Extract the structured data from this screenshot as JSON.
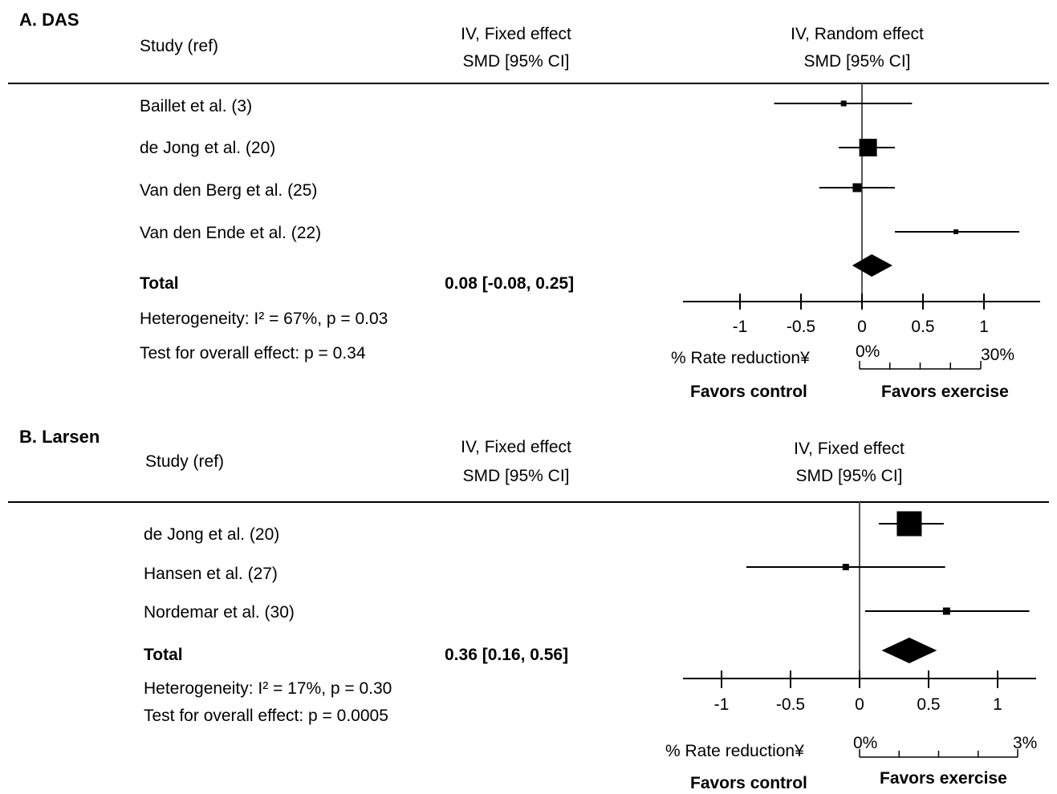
{
  "chart_data": [
    {
      "type": "forest",
      "panel_label": "A. DAS",
      "header": {
        "study_col": "Study (ref)",
        "mid_col_1": "IV, Fixed effect",
        "mid_col_2": "SMD [95% CI]",
        "right_col_1": "IV, Random effect",
        "right_col_2": "SMD [95% CI]"
      },
      "studies": [
        {
          "name": "Baillet et al. (3)",
          "smd": -0.15,
          "ci": [
            -0.72,
            0.41
          ]
        },
        {
          "name": "de Jong et al. (20)",
          "smd": 0.05,
          "ci": [
            -0.19,
            0.27
          ]
        },
        {
          "name": "Van den Berg et al. (25)",
          "smd": -0.04,
          "ci": [
            -0.35,
            0.27
          ]
        },
        {
          "name": "Van den Ende et al. (22)",
          "smd": 0.77,
          "ci": [
            0.27,
            1.29
          ]
        }
      ],
      "total": {
        "label": "Total",
        "text": "0.08 [-0.08, 0.25]",
        "smd": 0.08,
        "ci": [
          -0.08,
          0.25
        ]
      },
      "heterogeneity": "Heterogeneity: I² = 67%, p = 0.03",
      "overall_effect": "Test for overall effect: p = 0.34",
      "xaxis": {
        "ticks": [
          -1,
          -0.5,
          0,
          0.5,
          1
        ],
        "tick_labels": [
          "-1",
          "-0.5",
          "0",
          "0.5",
          "1"
        ],
        "xlim": [
          -1.45,
          1.45
        ]
      },
      "rate_reduction": {
        "label": "% Rate reduction¥",
        "start": "0%",
        "end": "30%"
      },
      "favors_left": "Favors control",
      "favors_right": "Favors exercise"
    },
    {
      "type": "forest",
      "panel_label": "B. Larsen",
      "header": {
        "study_col": "Study (ref)",
        "mid_col_1": "IV, Fixed effect",
        "mid_col_2": "SMD [95% CI]",
        "right_col_1": "IV, Fixed effect",
        "right_col_2": "SMD [95% CI]"
      },
      "studies": [
        {
          "name": "de Jong et al. (20)",
          "smd": 0.36,
          "ci": [
            0.14,
            0.61
          ]
        },
        {
          "name": "Hansen et al. (27)",
          "smd": -0.1,
          "ci": [
            -0.82,
            0.62
          ]
        },
        {
          "name": "Nordemar et al. (30)",
          "smd": 0.63,
          "ci": [
            0.04,
            1.23
          ]
        }
      ],
      "total": {
        "label": "Total",
        "text": "0.36 [0.16, 0.56]",
        "smd": 0.36,
        "ci": [
          0.16,
          0.56
        ]
      },
      "heterogeneity": "Heterogeneity: I² = 17%, p = 0.30",
      "overall_effect": "Test for overall effect: p = 0.0005",
      "xaxis": {
        "ticks": [
          -1,
          -0.5,
          0,
          0.5,
          1
        ],
        "tick_labels": [
          "-1",
          "-0.5",
          "0",
          "0.5",
          "1"
        ],
        "xlim": [
          -1.25,
          1.28
        ]
      },
      "rate_reduction": {
        "label": "% Rate reduction¥",
        "start": "0%",
        "end": "3%"
      },
      "favors_left": "Favors control",
      "favors_right": "Favors exercise"
    }
  ]
}
